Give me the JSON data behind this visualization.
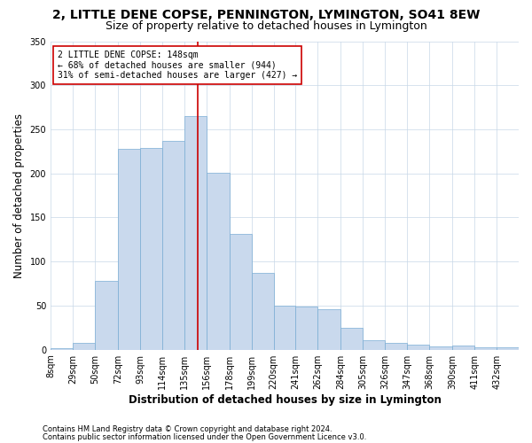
{
  "title": "2, LITTLE DENE COPSE, PENNINGTON, LYMINGTON, SO41 8EW",
  "subtitle": "Size of property relative to detached houses in Lymington",
  "xlabel": "Distribution of detached houses by size in Lymington",
  "ylabel": "Number of detached properties",
  "footnote1": "Contains HM Land Registry data © Crown copyright and database right 2024.",
  "footnote2": "Contains public sector information licensed under the Open Government Licence v3.0.",
  "annotation_line1": "2 LITTLE DENE COPSE: 148sqm",
  "annotation_line2": "← 68% of detached houses are smaller (944)",
  "annotation_line3": "31% of semi-detached houses are larger (427) →",
  "property_size": 148,
  "bar_color": "#c9d9ed",
  "bar_edge_color": "#7aadd4",
  "ref_line_color": "#cc0000",
  "annotation_box_color": "#cc0000",
  "bg_color": "#ffffff",
  "grid_color": "#c8d8e8",
  "bins": [
    8,
    29,
    50,
    72,
    93,
    114,
    135,
    156,
    178,
    199,
    220,
    241,
    262,
    284,
    305,
    326,
    347,
    368,
    390,
    411,
    432
  ],
  "counts": [
    2,
    8,
    78,
    228,
    229,
    237,
    265,
    201,
    131,
    87,
    50,
    49,
    46,
    25,
    11,
    8,
    6,
    4,
    5,
    3,
    3
  ],
  "ylim": [
    0,
    350
  ],
  "yticks": [
    0,
    50,
    100,
    150,
    200,
    250,
    300,
    350
  ],
  "title_fontsize": 10,
  "subtitle_fontsize": 9,
  "axis_label_fontsize": 8.5,
  "tick_fontsize": 7,
  "annotation_fontsize": 7,
  "footnote_fontsize": 6
}
